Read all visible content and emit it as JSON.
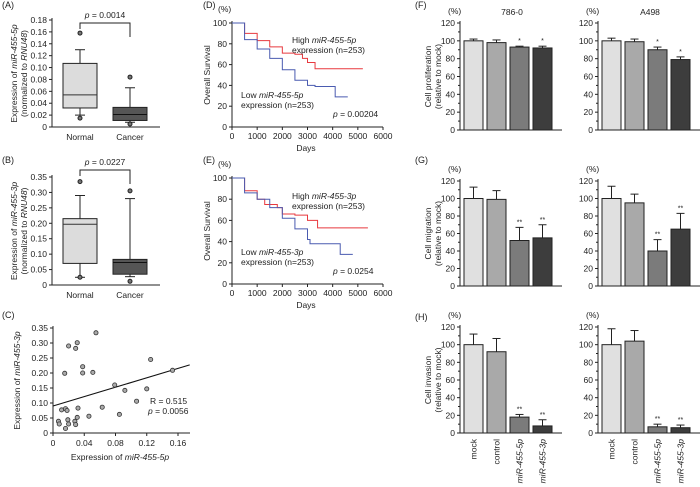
{
  "panel_labels": [
    "(A)",
    "(B)",
    "(C)",
    "(D)",
    "(E)",
    "(F)",
    "(G)",
    "(H)"
  ],
  "chart_data": [
    {
      "id": "A",
      "type": "box",
      "ylabel": [
        {
          "t": "Expression of ",
          "i": false
        },
        {
          "t": "miR-455-5p",
          "i": true
        }
      ],
      "ylabel2": [
        {
          "t": "(normalized to ",
          "i": false
        },
        {
          "t": "RNU48",
          "i": true
        },
        {
          "t": ")",
          "i": false
        }
      ],
      "ylim": [
        0,
        0.18
      ],
      "yticks": [
        "0",
        "0.02",
        "0.04",
        "0.06",
        "0.08",
        "0.10",
        "0.12",
        "0.14",
        "0.16",
        "0.18"
      ],
      "categories": [
        "Normal",
        "Cancer"
      ],
      "boxes": [
        {
          "whisker_low": 0.02,
          "q1": 0.032,
          "median": 0.054,
          "q3": 0.107,
          "whisker_high": 0.13,
          "outliers": [
            0.158,
            0.015
          ]
        },
        {
          "whisker_low": 0.008,
          "q1": 0.011,
          "median": 0.021,
          "q3": 0.033,
          "whisker_high": 0.066,
          "outliers": [
            0.084,
            0.005
          ]
        }
      ],
      "colors": [
        "#dcdcdc",
        "#555555"
      ],
      "p_label": "p",
      "p_value": " = 0.0014"
    },
    {
      "id": "B",
      "type": "box",
      "ylabel": [
        {
          "t": "Expression of ",
          "i": false
        },
        {
          "t": "miR-455-3p",
          "i": true
        }
      ],
      "ylabel2": [
        {
          "t": "(normalized to ",
          "i": false
        },
        {
          "t": "RNU48",
          "i": true
        },
        {
          "t": ")",
          "i": false
        }
      ],
      "ylim": [
        0,
        0.35
      ],
      "yticks": [
        "0",
        "0.05",
        "0.10",
        "0.15",
        "0.20",
        "0.25",
        "0.30",
        "0.35"
      ],
      "categories": [
        "Normal",
        "Cancer"
      ],
      "boxes": [
        {
          "whisker_low": 0.025,
          "q1": 0.07,
          "median": 0.197,
          "q3": 0.215,
          "whisker_high": 0.29,
          "outliers": [
            0.335,
            0.025
          ]
        },
        {
          "whisker_low": 0.027,
          "q1": 0.035,
          "median": 0.073,
          "q3": 0.083,
          "whisker_high": 0.28,
          "outliers": [
            0.305,
            0.012
          ]
        }
      ],
      "colors": [
        "#dcdcdc",
        "#555555"
      ],
      "p_label": "p",
      "p_value": " = 0.0227"
    },
    {
      "id": "C",
      "type": "scatter",
      "xlabel": [
        {
          "t": "Expression of ",
          "i": false
        },
        {
          "t": "miR-455-5p",
          "i": true
        }
      ],
      "ylabel": [
        {
          "t": "Expression of ",
          "i": false
        },
        {
          "t": "miR-455-3p",
          "i": true
        }
      ],
      "xlim": [
        0,
        0.175
      ],
      "ylim": [
        0,
        0.35
      ],
      "xticks": [
        "0",
        "0.04",
        "0.08",
        "0.12",
        "0.16"
      ],
      "yticks": [
        "0",
        "0.05",
        "0.10",
        "0.15",
        "0.20",
        "0.25",
        "0.30",
        "0.35"
      ],
      "points": [
        [
          0.055,
          0.334
        ],
        [
          0.02,
          0.29
        ],
        [
          0.031,
          0.301
        ],
        [
          0.029,
          0.282
        ],
        [
          0.015,
          0.199
        ],
        [
          0.038,
          0.221
        ],
        [
          0.038,
          0.2
        ],
        [
          0.051,
          0.202
        ],
        [
          0.125,
          0.245
        ],
        [
          0.153,
          0.209
        ],
        [
          0.079,
          0.16
        ],
        [
          0.092,
          0.142
        ],
        [
          0.12,
          0.147
        ],
        [
          0.107,
          0.106
        ],
        [
          0.063,
          0.086
        ],
        [
          0.032,
          0.083
        ],
        [
          0.011,
          0.077
        ],
        [
          0.016,
          0.081
        ],
        [
          0.018,
          0.075
        ],
        [
          0.046,
          0.056
        ],
        [
          0.085,
          0.062
        ],
        [
          0.031,
          0.052
        ],
        [
          0.019,
          0.044
        ],
        [
          0.028,
          0.039
        ],
        [
          0.007,
          0.039
        ],
        [
          0.008,
          0.03
        ],
        [
          0.02,
          0.03
        ],
        [
          0.029,
          0.028
        ],
        [
          0.016,
          0.015
        ]
      ],
      "fit_line": [
        [
          0,
          0.09
        ],
        [
          0.175,
          0.227
        ]
      ],
      "r_text": "R = 0.515",
      "p_label": "p",
      "p_value": " = 0.0056"
    },
    {
      "id": "D",
      "type": "line",
      "ylabel": "Overall Survival",
      "yunit": "(%)",
      "xlabel": "Days",
      "xlim": [
        0,
        6000
      ],
      "ylim": [
        0,
        100
      ],
      "xticks": [
        "0",
        "1000",
        "2000",
        "3000",
        "4000",
        "5000",
        "6000"
      ],
      "yticks": [
        "0",
        "20",
        "40",
        "60",
        "80",
        "100"
      ],
      "series": [
        {
          "name": [
            {
              "t": "High ",
              "i": false
            },
            {
              "t": "miR-455-5p",
              "i": true
            }
          ],
          "name2": "expression (n=253)",
          "color": "#e8393f",
          "points": [
            [
              0,
              100
            ],
            [
              500,
              90
            ],
            [
              1000,
              83
            ],
            [
              1500,
              77
            ],
            [
              2000,
              71
            ],
            [
              2500,
              70
            ],
            [
              2800,
              66
            ],
            [
              3000,
              62
            ],
            [
              3300,
              56
            ],
            [
              5200,
              56
            ]
          ]
        },
        {
          "name": [
            {
              "t": "Low ",
              "i": false
            },
            {
              "t": "miR-455-5p",
              "i": true
            }
          ],
          "name2": "expression (n=253)",
          "color": "#4a5bb0",
          "points": [
            [
              0,
              100
            ],
            [
              500,
              84
            ],
            [
              1000,
              75
            ],
            [
              1500,
              66
            ],
            [
              2000,
              55
            ],
            [
              2500,
              45
            ],
            [
              3000,
              40
            ],
            [
              3300,
              39
            ],
            [
              4000,
              39
            ],
            [
              4100,
              29
            ],
            [
              4600,
              29
            ]
          ]
        }
      ],
      "p_label": "p",
      "p_value": " = 0.00204"
    },
    {
      "id": "E",
      "type": "line",
      "ylabel": "Overall Survival",
      "yunit": "(%)",
      "xlabel": "Days",
      "xlim": [
        0,
        6000
      ],
      "ylim": [
        0,
        100
      ],
      "xticks": [
        "0",
        "1000",
        "2000",
        "3000",
        "4000",
        "5000",
        "6000"
      ],
      "yticks": [
        "0",
        "20",
        "40",
        "60",
        "80",
        "100"
      ],
      "series": [
        {
          "name": [
            {
              "t": "High ",
              "i": false
            },
            {
              "t": "miR-455-3p",
              "i": true
            }
          ],
          "name2": "expression (n=253)",
          "color": "#e8393f",
          "points": [
            [
              0,
              100
            ],
            [
              500,
              88
            ],
            [
              1000,
              80
            ],
            [
              1300,
              75
            ],
            [
              1800,
              72
            ],
            [
              2000,
              66
            ],
            [
              2500,
              65
            ],
            [
              3000,
              60
            ],
            [
              3400,
              53
            ],
            [
              5400,
              53
            ]
          ]
        },
        {
          "name": [
            {
              "t": "Low ",
              "i": false
            },
            {
              "t": "miR-455-3p",
              "i": true
            }
          ],
          "name2": "expression (n=253)",
          "color": "#4a5bb0",
          "points": [
            [
              0,
              100
            ],
            [
              500,
              86
            ],
            [
              1000,
              80
            ],
            [
              1500,
              72
            ],
            [
              2000,
              62
            ],
            [
              2500,
              52
            ],
            [
              3000,
              42
            ],
            [
              3100,
              38
            ],
            [
              4200,
              38
            ],
            [
              4300,
              28
            ],
            [
              4800,
              28
            ]
          ]
        }
      ],
      "p_label": "p",
      "p_value": " = 0.0254"
    },
    {
      "id": "F",
      "type": "bar",
      "ylabel": "Cell proliferation",
      "ylabel2": "(relative to mock)",
      "yunit": "(%)",
      "ylim": [
        0,
        120
      ],
      "yticks": [
        "0",
        "20",
        "40",
        "60",
        "80",
        "100",
        "120"
      ],
      "categories": [
        "mock",
        "control",
        "miR-455-5p",
        "miR-455-3p"
      ],
      "colors": [
        "#e0e0e0",
        "#a9a9a9",
        "#7b7b7b",
        "#3d3d3d"
      ],
      "panels": [
        {
          "title": "786-0",
          "values": [
            100,
            98,
            93,
            92
          ],
          "errors": [
            2,
            3,
            1,
            2
          ],
          "stars": [
            "",
            "",
            "*",
            "*"
          ]
        },
        {
          "title": "A498",
          "values": [
            100,
            99,
            90,
            79
          ],
          "errors": [
            3,
            3,
            3,
            3
          ],
          "stars": [
            "",
            "",
            "*",
            "*"
          ]
        }
      ]
    },
    {
      "id": "G",
      "type": "bar",
      "ylabel": "Cell migration",
      "ylabel2": "(relative to mock)",
      "yunit": "(%)",
      "ylim": [
        0,
        120
      ],
      "yticks": [
        "0",
        "20",
        "40",
        "60",
        "80",
        "100",
        "120"
      ],
      "categories": [
        "mock",
        "control",
        "miR-455-5p",
        "miR-455-3p"
      ],
      "colors": [
        "#e0e0e0",
        "#a9a9a9",
        "#7b7b7b",
        "#3d3d3d"
      ],
      "panels": [
        {
          "title": "",
          "values": [
            100,
            99,
            52,
            55
          ],
          "errors": [
            13,
            10,
            15,
            15
          ],
          "stars": [
            "",
            "",
            "**",
            "**"
          ]
        },
        {
          "title": "",
          "values": [
            100,
            95,
            40,
            65
          ],
          "errors": [
            14,
            10,
            13,
            18
          ],
          "stars": [
            "",
            "",
            "**",
            "**"
          ]
        }
      ]
    },
    {
      "id": "H",
      "type": "bar",
      "ylabel": "Cell invasion",
      "ylabel2": "(relative to mock)",
      "yunit": "(%)",
      "ylim": [
        0,
        120
      ],
      "yticks": [
        "0",
        "20",
        "40",
        "60",
        "80",
        "100",
        "120"
      ],
      "categories": [
        "mock",
        "control",
        "miR-455-5p",
        "miR-455-3p"
      ],
      "colors": [
        "#e0e0e0",
        "#a9a9a9",
        "#7b7b7b",
        "#3d3d3d"
      ],
      "panels": [
        {
          "title": "",
          "values": [
            100,
            92,
            18,
            8
          ],
          "errors": [
            12,
            15,
            3,
            7
          ],
          "stars": [
            "",
            "",
            "**",
            "**"
          ]
        },
        {
          "title": "",
          "values": [
            100,
            104,
            7,
            6
          ],
          "errors": [
            18,
            12,
            3,
            3
          ],
          "stars": [
            "",
            "",
            "**",
            "**"
          ]
        }
      ]
    }
  ]
}
